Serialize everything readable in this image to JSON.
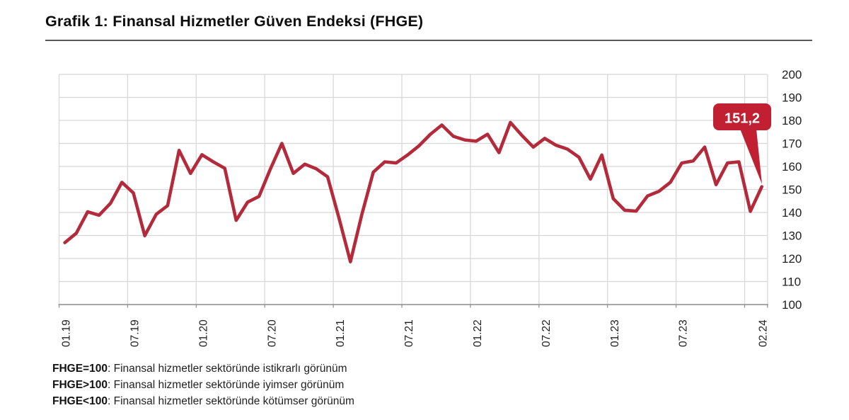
{
  "page": {
    "title": "Grafik 1: Finansal Hizmetler Güven Endeksi (FHGE)"
  },
  "chart_data": {
    "type": "line",
    "title": "Finansal Hizmetler Güven Endeksi (FHGE)",
    "categories": [
      "01.19",
      "02.19",
      "03.19",
      "04.19",
      "05.19",
      "06.19",
      "07.19",
      "08.19",
      "09.19",
      "10.19",
      "11.19",
      "12.19",
      "01.20",
      "02.20",
      "03.20",
      "04.20",
      "05.20",
      "06.20",
      "07.20",
      "08.20",
      "09.20",
      "10.20",
      "11.20",
      "12.20",
      "01.21",
      "02.21",
      "03.21",
      "04.21",
      "05.21",
      "06.21",
      "07.21",
      "08.21",
      "09.21",
      "10.21",
      "11.21",
      "12.21",
      "01.22",
      "02.22",
      "03.22",
      "04.22",
      "05.22",
      "06.22",
      "07.22",
      "08.22",
      "09.22",
      "10.22",
      "11.22",
      "12.22",
      "01.23",
      "02.23",
      "03.23",
      "04.23",
      "05.23",
      "06.23",
      "07.23",
      "08.23",
      "09.23",
      "10.23",
      "11.23",
      "12.23",
      "01.24",
      "02.24"
    ],
    "values": [
      126.9,
      131.0,
      140.3,
      138.8,
      144.0,
      153.1,
      148.5,
      129.9,
      139.2,
      143.0,
      167.0,
      157.0,
      165.1,
      162.0,
      159.2,
      136.6,
      144.5,
      147.0,
      159.0,
      170.0,
      157.0,
      161.0,
      159.0,
      155.5,
      137.5,
      118.6,
      139.2,
      157.5,
      162.0,
      161.5,
      165.0,
      169.0,
      174.0,
      178.0,
      173.1,
      171.5,
      171.0,
      174.0,
      166.0,
      179.1,
      173.5,
      168.4,
      172.2,
      169.2,
      167.5,
      164.0,
      154.5,
      165.0,
      146.0,
      141.0,
      140.6,
      147.2,
      149.2,
      153.1,
      161.5,
      162.4,
      168.4,
      152.1,
      161.5,
      162.0,
      140.5,
      151.2
    ],
    "ylim": [
      100,
      200
    ],
    "y_ticks": [
      100,
      110,
      120,
      130,
      140,
      150,
      160,
      170,
      180,
      190,
      200
    ],
    "x_ticks": [
      {
        "label": "01.19",
        "index": 0
      },
      {
        "label": "07.19",
        "index": 6
      },
      {
        "label": "01.20",
        "index": 12
      },
      {
        "label": "07.20",
        "index": 18
      },
      {
        "label": "01.21",
        "index": 24
      },
      {
        "label": "07.21",
        "index": 30
      },
      {
        "label": "01.22",
        "index": 36
      },
      {
        "label": "07.22",
        "index": 42
      },
      {
        "label": "01.23",
        "index": 48
      },
      {
        "label": "07.23",
        "index": 54
      },
      {
        "label": "02.24",
        "index": 61
      }
    ],
    "annotation": {
      "label": "151,2",
      "index": 61,
      "value": 151.2
    },
    "grid": true,
    "legend": "none",
    "colors": {
      "line": "#b42a3a",
      "callout_bg": "#c02031",
      "callout_text": "#ffffff",
      "grid": "#d6d6d6",
      "axis": "#8c8c8c",
      "tick_label": "#1f1f1f"
    }
  },
  "footnotes": [
    {
      "term": "FHGE=100",
      "text": ": Finansal hizmetler sektöründe istikrarlı görünüm"
    },
    {
      "term": "FHGE>100",
      "text": ": Finansal hizmetler sektöründe iyimser görünüm"
    },
    {
      "term": "FHGE<100",
      "text": ": Finansal hizmetler sektöründe kötümser görünüm"
    }
  ]
}
